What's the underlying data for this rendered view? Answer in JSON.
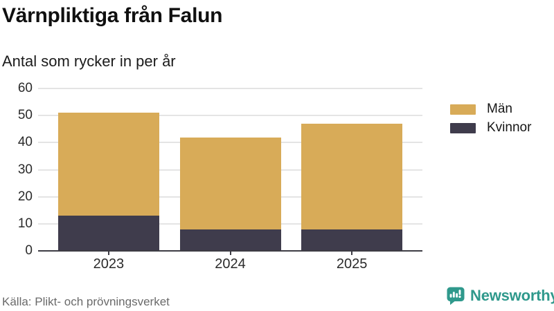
{
  "header": {
    "title": "Värnpliktiga från Falun",
    "subtitle": "Antal som rycker in per år"
  },
  "chart_data": {
    "type": "bar",
    "stacked": true,
    "title": "Värnpliktiga från Falun",
    "subtitle": "Antal som rycker in per år",
    "categories": [
      "2023",
      "2024",
      "2025"
    ],
    "series": [
      {
        "name": "Kvinnor",
        "values": [
          13,
          8,
          8
        ],
        "color": "#3F3C4C"
      },
      {
        "name": "Män",
        "values": [
          38,
          34,
          39
        ],
        "color": "#D8AB58"
      }
    ],
    "stack_totals": [
      51,
      42,
      47
    ],
    "xlabel": "",
    "ylabel": "",
    "ylim": [
      0,
      60
    ],
    "yticks": [
      0,
      10,
      20,
      30,
      40,
      50,
      60
    ],
    "grid": "horizontal",
    "legend_position": "right"
  },
  "legend": {
    "items": [
      {
        "label": "Män",
        "color": "#D8AB58"
      },
      {
        "label": "Kvinnor",
        "color": "#3F3C4C"
      }
    ]
  },
  "footer": {
    "source": "Källa: Plikt- och prövningsverket",
    "brand": "Newsworthy",
    "brand_color": "#2F998C"
  }
}
